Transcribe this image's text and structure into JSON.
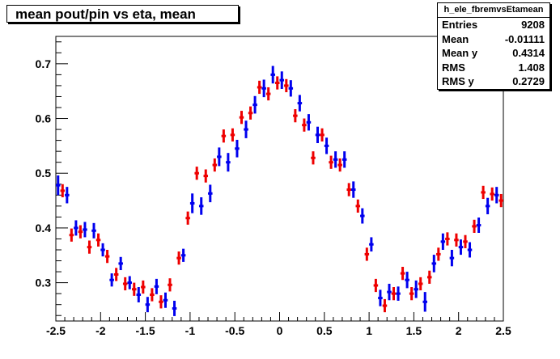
{
  "title": "mean pout/pin vs eta, mean",
  "stats": {
    "name": "h_ele_fbremvsEtamean",
    "rows": [
      {
        "label": "Entries",
        "value": "9208"
      },
      {
        "label": "Mean",
        "value": "-0.01111"
      },
      {
        "label": "Mean y",
        "value": "0.4314"
      },
      {
        "label": "RMS",
        "value": "1.408"
      },
      {
        "label": "RMS y",
        "value": "0.2729"
      }
    ]
  },
  "chart_data": {
    "type": "scatter",
    "title": "mean pout/pin vs eta, mean",
    "xlim": [
      -2.5,
      2.5
    ],
    "ylim": [
      0.23,
      0.75
    ],
    "x_ticks": [
      "-2.5",
      "-2",
      "-1.5",
      "-1",
      "-0.5",
      "0",
      "0.5",
      "1",
      "1.5",
      "2",
      "2.5"
    ],
    "y_ticks": [
      "0.3",
      "0.4",
      "0.5",
      "0.6",
      "0.7"
    ],
    "x_tick_values": [
      -2.5,
      -2,
      -1.5,
      -1,
      -0.5,
      0,
      0.5,
      1,
      1.5,
      2,
      2.5
    ],
    "y_tick_values": [
      0.3,
      0.4,
      0.5,
      0.6,
      0.7
    ],
    "bin_half_width": 0.025,
    "series": [
      {
        "color": "#0000ee",
        "x": [
          -2.475,
          -2.375,
          -2.275,
          -2.175,
          -2.075,
          -1.975,
          -1.875,
          -1.775,
          -1.675,
          -1.575,
          -1.475,
          -1.375,
          -1.275,
          -1.175,
          -1.075,
          -0.975,
          -0.875,
          -0.775,
          -0.675,
          -0.575,
          -0.475,
          -0.375,
          -0.275,
          -0.175,
          -0.075,
          0.025,
          0.125,
          0.225,
          0.325,
          0.425,
          0.525,
          0.625,
          0.725,
          0.825,
          0.925,
          1.025,
          1.125,
          1.225,
          1.325,
          1.425,
          1.525,
          1.625,
          1.725,
          1.825,
          1.925,
          2.025,
          2.125,
          2.225,
          2.325,
          2.425
        ],
        "y": [
          0.478,
          0.46,
          0.4,
          0.397,
          0.395,
          0.36,
          0.305,
          0.335,
          0.3,
          0.278,
          0.26,
          0.293,
          0.268,
          0.253,
          0.35,
          0.445,
          0.44,
          0.463,
          0.53,
          0.52,
          0.545,
          0.58,
          0.625,
          0.655,
          0.68,
          0.67,
          0.655,
          0.628,
          0.593,
          0.57,
          0.55,
          0.525,
          0.525,
          0.47,
          0.422,
          0.37,
          0.272,
          0.283,
          0.28,
          0.305,
          0.288,
          0.265,
          0.335,
          0.375,
          0.345,
          0.365,
          0.36,
          0.405,
          0.44,
          0.46
        ],
        "err": [
          0.018,
          0.015,
          0.014,
          0.014,
          0.014,
          0.012,
          0.012,
          0.012,
          0.012,
          0.014,
          0.014,
          0.014,
          0.014,
          0.014,
          0.012,
          0.018,
          0.016,
          0.016,
          0.017,
          0.017,
          0.016,
          0.016,
          0.016,
          0.016,
          0.016,
          0.016,
          0.015,
          0.015,
          0.015,
          0.015,
          0.015,
          0.015,
          0.015,
          0.015,
          0.014,
          0.013,
          0.015,
          0.015,
          0.013,
          0.015,
          0.016,
          0.018,
          0.016,
          0.015,
          0.015,
          0.014,
          0.014,
          0.014,
          0.015,
          0.015
        ]
      },
      {
        "color": "#ee0000",
        "x": [
          -2.425,
          -2.325,
          -2.225,
          -2.125,
          -2.025,
          -1.925,
          -1.825,
          -1.725,
          -1.625,
          -1.525,
          -1.425,
          -1.325,
          -1.225,
          -1.125,
          -1.025,
          -0.925,
          -0.825,
          -0.725,
          -0.625,
          -0.525,
          -0.425,
          -0.325,
          -0.225,
          -0.125,
          -0.025,
          0.075,
          0.175,
          0.275,
          0.375,
          0.475,
          0.575,
          0.675,
          0.775,
          0.875,
          0.975,
          1.075,
          1.175,
          1.275,
          1.375,
          1.475,
          1.575,
          1.675,
          1.775,
          1.875,
          1.975,
          2.075,
          2.175,
          2.275,
          2.375,
          2.475
        ],
        "y": [
          0.468,
          0.387,
          0.393,
          0.365,
          0.378,
          0.348,
          0.315,
          0.298,
          0.288,
          0.292,
          0.278,
          0.265,
          0.296,
          0.345,
          0.418,
          0.5,
          0.495,
          0.515,
          0.568,
          0.57,
          0.602,
          0.61,
          0.657,
          0.645,
          0.665,
          0.66,
          0.605,
          0.588,
          0.528,
          0.57,
          0.52,
          0.515,
          0.47,
          0.44,
          0.352,
          0.295,
          0.258,
          0.28,
          0.317,
          0.28,
          0.298,
          0.31,
          0.352,
          0.38,
          0.378,
          0.375,
          0.403,
          0.465,
          0.462,
          0.45
        ],
        "err": [
          0.012,
          0.012,
          0.012,
          0.012,
          0.012,
          0.012,
          0.012,
          0.012,
          0.012,
          0.012,
          0.012,
          0.012,
          0.012,
          0.012,
          0.012,
          0.012,
          0.012,
          0.012,
          0.012,
          0.012,
          0.012,
          0.012,
          0.012,
          0.012,
          0.012,
          0.012,
          0.012,
          0.012,
          0.012,
          0.012,
          0.012,
          0.012,
          0.012,
          0.012,
          0.012,
          0.012,
          0.012,
          0.012,
          0.012,
          0.012,
          0.012,
          0.012,
          0.012,
          0.012,
          0.012,
          0.012,
          0.012,
          0.012,
          0.012,
          0.012
        ]
      }
    ]
  }
}
